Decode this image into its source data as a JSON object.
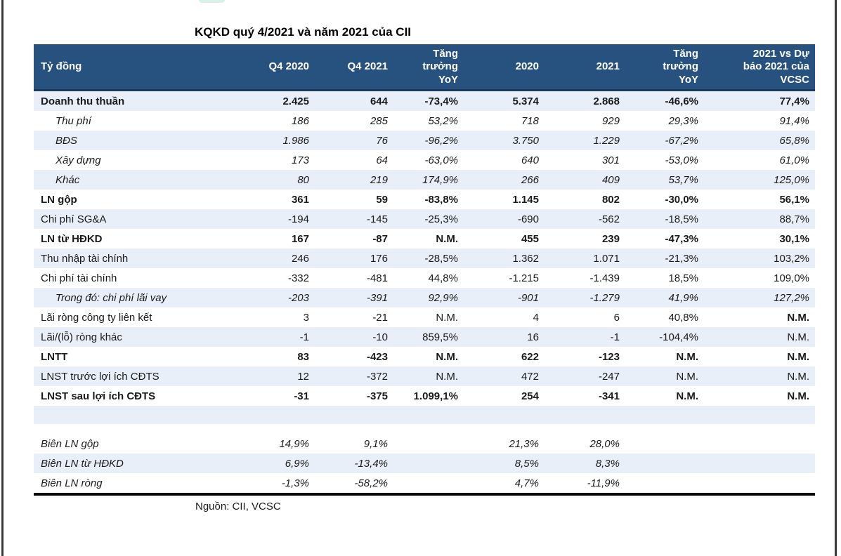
{
  "page": {
    "title": "KQKD quý 4/2021 và năm 2021 của CII",
    "source": "Nguồn: CII, VCSC"
  },
  "colors": {
    "header_bg": "#27517E",
    "header_border": "#1B3A5C",
    "stripe": "#E9EFF8",
    "frame": "#3B3B3B",
    "text": "#1A1A1A"
  },
  "table": {
    "columns": [
      "Tỷ đồng",
      "Q4 2020",
      "Q4 2021",
      "Tăng\ntrưởng\nYoY",
      "2020",
      "2021",
      "Tăng\ntrưởng\nYoY",
      "2021 vs Dự\nbáo 2021 của\nVCSC"
    ],
    "rows": [
      {
        "label": "Doanh thu thuần",
        "cells": [
          "2.425",
          "644",
          "-73,4%",
          "5.374",
          "2.868",
          "-46,6%",
          "77,4%"
        ],
        "bold": true,
        "tint": true
      },
      {
        "label": "Thu phí",
        "cells": [
          "186",
          "285",
          "53,2%",
          "718",
          "929",
          "29,3%",
          "91,4%"
        ],
        "italic": true,
        "indent": true
      },
      {
        "label": "BĐS",
        "cells": [
          "1.986",
          "76",
          "-96,2%",
          "3.750",
          "1.229",
          "-67,2%",
          "65,8%"
        ],
        "italic": true,
        "indent": true,
        "tint": true
      },
      {
        "label": "Xây dựng",
        "cells": [
          "173",
          "64",
          "-63,0%",
          "640",
          "301",
          "-53,0%",
          "61,0%"
        ],
        "italic": true,
        "indent": true
      },
      {
        "label": "Khác",
        "cells": [
          "80",
          "219",
          "174,9%",
          "266",
          "409",
          "53,7%",
          "125,0%"
        ],
        "italic": true,
        "indent": true,
        "tint": true
      },
      {
        "label": "LN gộp",
        "cells": [
          "361",
          "59",
          "-83,8%",
          "1.145",
          "802",
          "-30,0%",
          "56,1%"
        ],
        "bold": true
      },
      {
        "label": "Chi phí SG&A",
        "cells": [
          "-194",
          "-145",
          "-25,3%",
          "-690",
          "-562",
          "-18,5%",
          "88,7%"
        ],
        "tint": true
      },
      {
        "label": "LN từ HĐKD",
        "cells": [
          "167",
          "-87",
          "N.M.",
          "455",
          "239",
          "-47,3%",
          "30,1%"
        ],
        "bold": true
      },
      {
        "label": "Thu nhập tài chính",
        "cells": [
          "246",
          "176",
          "-28,5%",
          "1.362",
          "1.071",
          "-21,3%",
          "103,2%"
        ],
        "tint": true
      },
      {
        "label": "Chi phí tài chính",
        "cells": [
          "-332",
          "-481",
          "44,8%",
          "-1.215",
          "-1.439",
          "18,5%",
          "109,0%"
        ]
      },
      {
        "label": "Trong đó: chi phí lãi vay",
        "cells": [
          "-203",
          "-391",
          "92,9%",
          "-901",
          "-1.279",
          "41,9%",
          "127,2%"
        ],
        "italic": true,
        "indent": true,
        "tint": true
      },
      {
        "label": "Lãi ròng công ty liên kết",
        "cells": [
          "3",
          "-21",
          "N.M.",
          "4",
          "6",
          "40,8%",
          "N.M."
        ],
        "bold_last": true
      },
      {
        "label": "Lãi/(lỗ) ròng khác",
        "cells": [
          "-1",
          "-10",
          "859,5%",
          "16",
          "-1",
          "-104,4%",
          "N.M."
        ],
        "tint": true
      },
      {
        "label": "LNTT",
        "cells": [
          "83",
          "-423",
          "N.M.",
          "622",
          "-123",
          "N.M.",
          "N.M."
        ],
        "bold": true
      },
      {
        "label": "LNST trước lợi ích CĐTS",
        "cells": [
          "12",
          "-372",
          "N.M.",
          "472",
          "-247",
          "N.M.",
          "N.M."
        ],
        "tint": true
      },
      {
        "label": "LNST sau lợi ích CĐTS",
        "cells": [
          "-31",
          "-375",
          "1.099,1%",
          "254",
          "-341",
          "N.M.",
          "N.M."
        ],
        "bold": true
      },
      {
        "label": "",
        "cells": [
          "",
          "",
          "",
          "",
          "",
          "",
          ""
        ],
        "tint": true,
        "spacer": "tall"
      },
      {
        "label": "",
        "cells": [
          "",
          "",
          "",
          "",
          "",
          "",
          ""
        ],
        "spacer": "short"
      },
      {
        "label": "Biên LN gộp",
        "cells": [
          "14,9%",
          "9,1%",
          "",
          "21,3%",
          "28,0%",
          "",
          ""
        ],
        "italic": true
      },
      {
        "label": "Biên LN từ HĐKD",
        "cells": [
          "6,9%",
          "-13,4%",
          "",
          "8,5%",
          "8,3%",
          "",
          ""
        ],
        "italic": true,
        "tint": true
      },
      {
        "label": "Biên LN ròng",
        "cells": [
          "-1,3%",
          "-58,2%",
          "",
          "4,7%",
          "-11,9%",
          "",
          ""
        ],
        "italic": true
      }
    ]
  }
}
